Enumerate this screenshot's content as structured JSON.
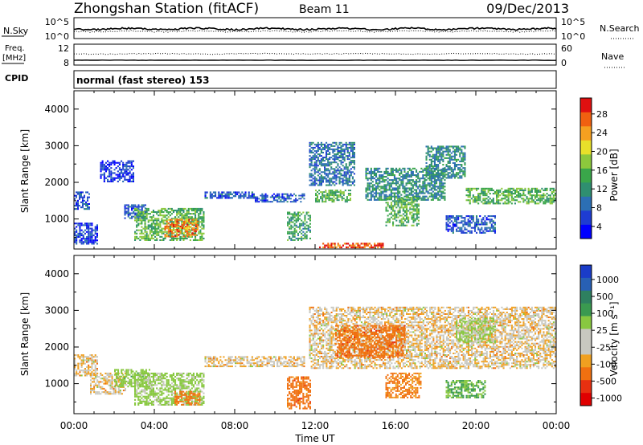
{
  "header": {
    "station": "Zhongshan Station (fitACF)",
    "beam": "Beam 11",
    "date": "09/Dec/2013"
  },
  "strips": {
    "nsky_label": "N.Sky",
    "nsky_ticks": [
      "10^5",
      "10^0"
    ],
    "nsearch_label": "N.Search",
    "nsearch_ticks": [
      "10^5",
      "10^0"
    ],
    "freq_label": "Freq.",
    "freq_unit": "[MHz]",
    "freq_ticks": [
      "12",
      "8"
    ],
    "nave_label": "Nave",
    "nave_ticks": [
      "60",
      "0"
    ],
    "cpid_label": "CPID",
    "cpid_text": "normal (fast stereo) 153"
  },
  "colorbars": {
    "power": {
      "label": "Power [dB]",
      "ticks": [
        "28",
        "24",
        "20",
        "16",
        "12",
        "8",
        "4"
      ],
      "colors": [
        "#0000ff",
        "#1e3cd2",
        "#2c6fb4",
        "#2f8f70",
        "#3aa64a",
        "#8cc83c",
        "#e8e02a",
        "#f5a020",
        "#f06010",
        "#e01010"
      ]
    },
    "velocity": {
      "label": "Velocity [m s⁻¹]",
      "ticks": [
        "1000",
        "500",
        "100",
        "25",
        "-25",
        "-100",
        "-500",
        "-1000"
      ],
      "colors": [
        "#1a3cc8",
        "#2860b4",
        "#2e8060",
        "#3a9a50",
        "#88c840",
        "#c8c8c0",
        "#c8c8c0",
        "#f0a020",
        "#f07010",
        "#e83010",
        "#e00000"
      ]
    }
  },
  "chart_data": [
    {
      "type": "heatmap",
      "title": "Power",
      "xlabel": "",
      "ylabel": "Slant Range [km]",
      "x_ticks": [
        "00:00",
        "04:00",
        "08:00",
        "12:00",
        "16:00",
        "20:00",
        "00:00"
      ],
      "y_ticks": [
        "4000",
        "3000",
        "2000",
        "1000"
      ],
      "xlim_hours": [
        0,
        24
      ],
      "ylim_km": [
        180,
        4500
      ],
      "regions": [
        {
          "t": [
            0.0,
            0.8
          ],
          "r": [
            1250,
            1750
          ],
          "dB": 6
        },
        {
          "t": [
            0.0,
            1.2
          ],
          "r": [
            300,
            900
          ],
          "dB": 5
        },
        {
          "t": [
            1.3,
            3.0
          ],
          "r": [
            2000,
            2600
          ],
          "dB": 4
        },
        {
          "t": [
            2.5,
            3.6
          ],
          "r": [
            1000,
            1400
          ],
          "dB": 6
        },
        {
          "t": [
            3.0,
            6.5
          ],
          "r": [
            400,
            1300
          ],
          "dB": 14
        },
        {
          "t": [
            4.5,
            6.2
          ],
          "r": [
            500,
            1000
          ],
          "dB": 24
        },
        {
          "t": [
            6.5,
            9.0
          ],
          "r": [
            1550,
            1750
          ],
          "dB": 6
        },
        {
          "t": [
            9.0,
            11.5
          ],
          "r": [
            1450,
            1700
          ],
          "dB": 6
        },
        {
          "t": [
            10.6,
            11.8
          ],
          "r": [
            400,
            1200
          ],
          "dB": 12
        },
        {
          "t": [
            11.7,
            14.0
          ],
          "r": [
            1900,
            3100
          ],
          "dB": 8
        },
        {
          "t": [
            12.0,
            13.8
          ],
          "r": [
            1450,
            1800
          ],
          "dB": 14
        },
        {
          "t": [
            12.2,
            15.5
          ],
          "r": [
            200,
            350
          ],
          "dB": 26
        },
        {
          "t": [
            14.5,
            18.5
          ],
          "r": [
            1500,
            2400
          ],
          "dB": 10
        },
        {
          "t": [
            15.5,
            17.2
          ],
          "r": [
            800,
            1600
          ],
          "dB": 14
        },
        {
          "t": [
            17.5,
            19.5
          ],
          "r": [
            2100,
            3000
          ],
          "dB": 10
        },
        {
          "t": [
            18.5,
            21.0
          ],
          "r": [
            600,
            1100
          ],
          "dB": 6
        },
        {
          "t": [
            19.5,
            24.0
          ],
          "r": [
            1400,
            1850
          ],
          "dB": 14
        }
      ]
    },
    {
      "type": "heatmap",
      "title": "Velocity",
      "xlabel": "Time UT",
      "ylabel": "Slant Range [km]",
      "x_ticks": [
        "00:00",
        "04:00",
        "08:00",
        "12:00",
        "16:00",
        "20:00",
        "00:00"
      ],
      "y_ticks": [
        "4000",
        "3000",
        "2000",
        "1000"
      ],
      "xlim_hours": [
        0,
        24
      ],
      "ylim_km": [
        180,
        4500
      ],
      "regions": [
        {
          "t": [
            0.0,
            1.2
          ],
          "r": [
            1200,
            1800
          ],
          "v": 0
        },
        {
          "t": [
            0.8,
            2.6
          ],
          "r": [
            700,
            1300
          ],
          "v": 0
        },
        {
          "t": [
            2.0,
            3.8
          ],
          "r": [
            900,
            1400
          ],
          "v": 200
        },
        {
          "t": [
            3.0,
            6.5
          ],
          "r": [
            400,
            1300
          ],
          "v": 150
        },
        {
          "t": [
            5.0,
            6.3
          ],
          "r": [
            400,
            800
          ],
          "v": -150
        },
        {
          "t": [
            6.5,
            11.5
          ],
          "r": [
            1450,
            1750
          ],
          "v": 0
        },
        {
          "t": [
            10.6,
            11.8
          ],
          "r": [
            300,
            1200
          ],
          "v": -200
        },
        {
          "t": [
            11.7,
            24.0
          ],
          "r": [
            1400,
            3100
          ],
          "v": 0
        },
        {
          "t": [
            13.0,
            16.5
          ],
          "r": [
            1700,
            2600
          ],
          "v": -200
        },
        {
          "t": [
            15.5,
            17.3
          ],
          "r": [
            600,
            1300
          ],
          "v": -150
        },
        {
          "t": [
            18.5,
            20.5
          ],
          "r": [
            600,
            1100
          ],
          "v": 300
        },
        {
          "t": [
            19.0,
            21.0
          ],
          "r": [
            2100,
            2800
          ],
          "v": 150
        }
      ]
    }
  ]
}
